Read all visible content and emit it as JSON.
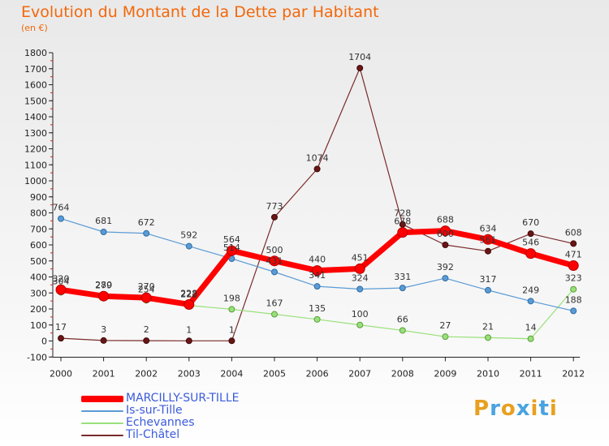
{
  "header": {
    "title": "Evolution du Montant de la Dette par Habitant",
    "subtitle": "(en €)"
  },
  "chart_data": {
    "type": "line",
    "title": "Evolution du Montant de la Dette par Habitant",
    "ylabel": "(en €)",
    "xlabel": "",
    "ylim": [
      -100,
      1800
    ],
    "y_ticks": [
      -100,
      0,
      100,
      200,
      300,
      400,
      500,
      600,
      700,
      800,
      900,
      1000,
      1100,
      1200,
      1300,
      1400,
      1500,
      1600,
      1700,
      1800
    ],
    "categories": [
      "2000",
      "2001",
      "2002",
      "2003",
      "2004",
      "2005",
      "2006",
      "2007",
      "2008",
      "2009",
      "2010",
      "2011",
      "2012"
    ],
    "grid": false,
    "legend_position": "bottom-left",
    "series": [
      {
        "name": "MARCILLY-SUR-TILLE",
        "color": "#ff0000",
        "values": [
          320,
          280,
          270,
          228,
          564,
          500,
          440,
          451,
          678,
          688,
          634,
          546,
          471
        ]
      },
      {
        "name": "Is-sur-Tille",
        "color": "#5b9bd5",
        "values": [
          764,
          681,
          672,
          592,
          514,
          431,
          341,
          324,
          331,
          392,
          317,
          249,
          188
        ]
      },
      {
        "name": "Echevannes",
        "color": "#99e07a",
        "values": [
          304,
          279,
          254,
          222,
          198,
          167,
          135,
          100,
          66,
          27,
          21,
          14,
          323
        ]
      },
      {
        "name": "Til-Châtel",
        "color": "#7a2b2b",
        "values": [
          17,
          3,
          2,
          1,
          1,
          773,
          1074,
          1704,
          728,
          600,
          561,
          670,
          608
        ]
      }
    ],
    "labels": {
      "MARCILLY-SUR-TILLE": [
        "320",
        "280",
        "270",
        "228",
        "564",
        "500",
        "440",
        "451",
        "678",
        "688",
        "634",
        "546",
        "471"
      ],
      "Is-sur-Tille": [
        "764",
        "681",
        "672",
        "592",
        "514",
        "431",
        "341",
        "324",
        "331",
        "392",
        "317",
        "249",
        "188"
      ],
      "Echevannes": [
        "304",
        "279",
        "254",
        "222",
        "198",
        "167",
        "135",
        "100",
        "66",
        "27",
        "21",
        "14",
        "323"
      ],
      "Til-Châtel": [
        "17",
        "3",
        "2",
        "1",
        "1",
        "773",
        "1074",
        "1704",
        "728",
        "600",
        "561",
        "670",
        "608"
      ]
    }
  },
  "logo": {
    "letters": [
      "P",
      "r",
      "o",
      "x",
      "i",
      "t",
      "i"
    ],
    "colors": [
      "#e8a020",
      "#4aa3df",
      "#e8a020",
      "#4aa3df",
      "#e8a020",
      "#4aa3df",
      "#e8a020"
    ]
  }
}
